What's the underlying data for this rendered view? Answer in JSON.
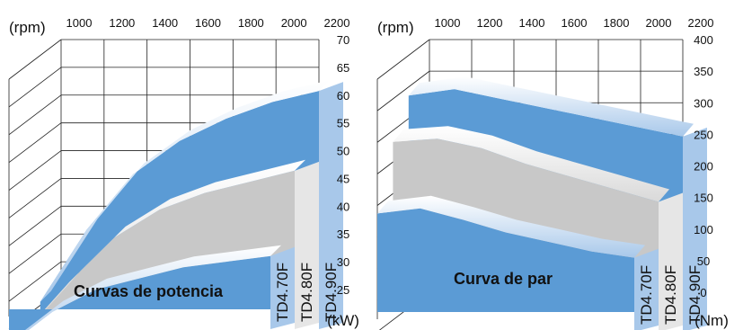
{
  "chart_data": [
    {
      "type": "area",
      "title": "Curvas de potencia",
      "x_unit": "(rpm)",
      "y_unit": "(kW)",
      "x_ticks": [
        "1000",
        "1200",
        "1400",
        "1600",
        "1800",
        "2000",
        "2200"
      ],
      "y_ticks": [
        "25",
        "30",
        "35",
        "40",
        "45",
        "50",
        "55",
        "60",
        "65",
        "70"
      ],
      "xlim": [
        1000,
        2200
      ],
      "ylim": [
        25,
        70
      ],
      "x": [
        1000,
        1200,
        1400,
        1600,
        1800,
        2000,
        2200
      ],
      "series": [
        {
          "name": "TD4.90F",
          "color": "#5b9bd5",
          "values": [
            26,
            39,
            49,
            55,
            59,
            62,
            64
          ]
        },
        {
          "name": "TD4.80F",
          "color": "#c8c8c8",
          "values": [
            25,
            34,
            42,
            47,
            50,
            52,
            54
          ]
        },
        {
          "name": "TD4.70F",
          "color": "#5b9bd5",
          "values": [
            27,
            33,
            37,
            39,
            41,
            42,
            43
          ]
        }
      ],
      "grid": true
    },
    {
      "type": "area",
      "title": "Curva de par",
      "x_unit": "(rpm)",
      "y_unit": "(Nm)",
      "x_ticks": [
        "1000",
        "1200",
        "1400",
        "1600",
        "1800",
        "2000",
        "2200"
      ],
      "y_ticks": [
        "0",
        "50",
        "100",
        "150",
        "200",
        "250",
        "300",
        "350",
        "400"
      ],
      "xlim": [
        1000,
        2200
      ],
      "ylim": [
        0,
        400
      ],
      "x": [
        1000,
        1200,
        1400,
        1600,
        1800,
        2000,
        2200
      ],
      "series": [
        {
          "name": "TD4.90F",
          "color": "#5b9bd5",
          "values": [
            340,
            350,
            335,
            320,
            305,
            290,
            275
          ]
        },
        {
          "name": "TD4.80F",
          "color": "#c8c8c8",
          "values": [
            305,
            310,
            295,
            270,
            250,
            230,
            210
          ]
        },
        {
          "name": "TD4.70F",
          "color": "#5b9bd5",
          "values": [
            230,
            238,
            220,
            200,
            185,
            170,
            160
          ]
        }
      ],
      "grid": true
    }
  ]
}
